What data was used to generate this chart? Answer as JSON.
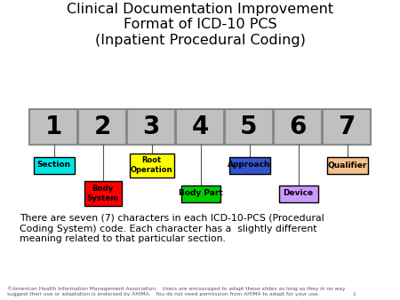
{
  "title": "Clinical Documentation Improvement\nFormat of ICD-10 PCS\n(Inpatient Procedural Coding)",
  "title_fontsize": 11.5,
  "bg_color": "#ffffff",
  "numbers": [
    "1",
    "2",
    "3",
    "4",
    "5",
    "6",
    "7"
  ],
  "box_bg": "#c0c0c0",
  "box_border": "#888888",
  "labels_top": [
    {
      "text": "Section",
      "x": 0,
      "color_bg": "#00e5e5",
      "color_border": "#008080"
    },
    {
      "text": "Root\nOperation",
      "x": 2,
      "color_bg": "#ffff00",
      "color_border": "#888800"
    },
    {
      "text": "Approach",
      "x": 4,
      "color_bg": "#3355cc",
      "color_border": "#0000aa"
    },
    {
      "text": "Qualifier",
      "x": 6,
      "color_bg": "#f5c08a",
      "color_border": "#a0522d"
    }
  ],
  "labels_bot": [
    {
      "text": "Body\nSystem",
      "x": 1,
      "color_bg": "#ff0000",
      "color_border": "#880000"
    },
    {
      "text": "Body Part",
      "x": 3,
      "color_bg": "#00cc00",
      "color_border": "#006600"
    },
    {
      "text": "Device",
      "x": 5,
      "color_bg": "#cc99ff",
      "color_border": "#7744aa"
    }
  ],
  "body_text": "There are seven (7) characters in each ICD-10-PCS (Procedural\nCoding System) code. Each character has a  slightly different\nmeaning related to that particular section.",
  "footer_text": "©American Health Information Management Association.   Users are encouraged to adapt these slides as long as they in no way\nsuggest their use or adaptation is endorsed by AHIMA.   You do not need permission from AHIMA to adapt for your use.                    1"
}
